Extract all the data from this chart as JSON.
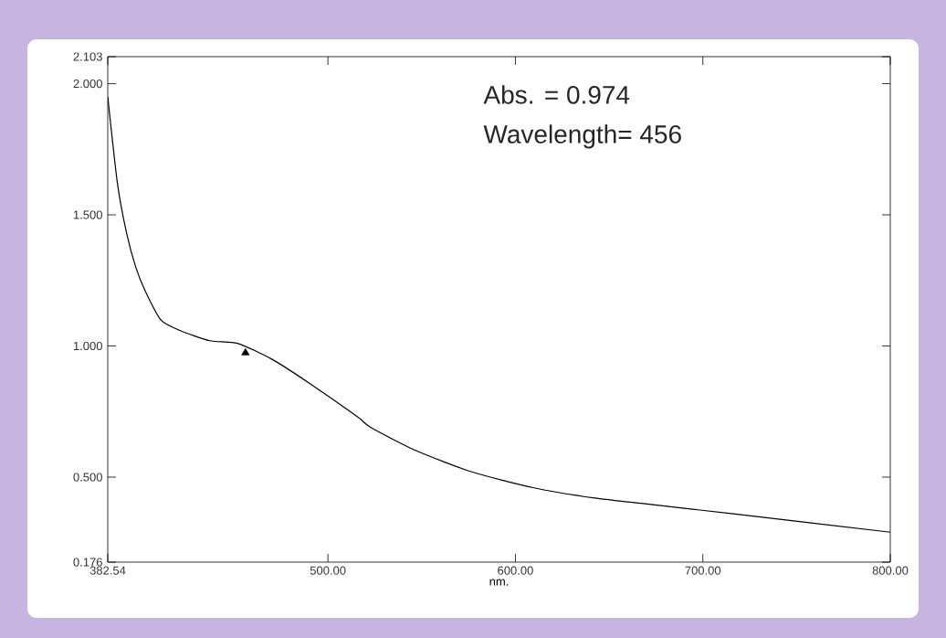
{
  "chart_data": {
    "type": "line",
    "xlabel": "nm.",
    "xlim": [
      382.54,
      800
    ],
    "ylim": [
      0.176,
      2.103
    ],
    "xticks": [
      {
        "value": 382.54,
        "label": "382.54"
      },
      {
        "value": 500,
        "label": "500.00"
      },
      {
        "value": 600,
        "label": "600.00"
      },
      {
        "value": 700,
        "label": "700.00"
      },
      {
        "value": 800,
        "label": "800.00"
      }
    ],
    "yticks": [
      {
        "value": 0.176,
        "label": "0.176"
      },
      {
        "value": 0.5,
        "label": "0.500"
      },
      {
        "value": 1.0,
        "label": "1.000"
      },
      {
        "value": 1.5,
        "label": "1.500"
      },
      {
        "value": 2.0,
        "label": "2.000"
      },
      {
        "value": 2.103,
        "label": "2.103"
      }
    ],
    "grid": false,
    "marker": "none",
    "line_style": "solid",
    "annotations": [
      "Abs. = 0.974",
      "Wavelength= 456"
    ],
    "series": [
      {
        "color": "#000000",
        "x": [
          382.54,
          387.7,
          392.6,
          397.5,
          402.5,
          410.8,
          420.7,
          436.9,
          451.7,
          470,
          489.7,
          515.8,
          522.7,
          547.3,
          576.8,
          609.4,
          642.4,
          667,
          716.3,
          800
        ],
        "values": [
          1.95,
          1.62,
          1.43,
          1.3,
          1.21,
          1.1,
          1.06,
          1.02,
          1.01,
          0.95,
          0.86,
          0.73,
          0.69,
          0.6,
          0.52,
          0.46,
          0.42,
          0.4,
          0.36,
          0.29
        ]
      },
      {
        "type": "scatter",
        "marker": "triangle",
        "color": "#000000",
        "x": [
          456
        ],
        "values": [
          0.974
        ]
      }
    ]
  }
}
